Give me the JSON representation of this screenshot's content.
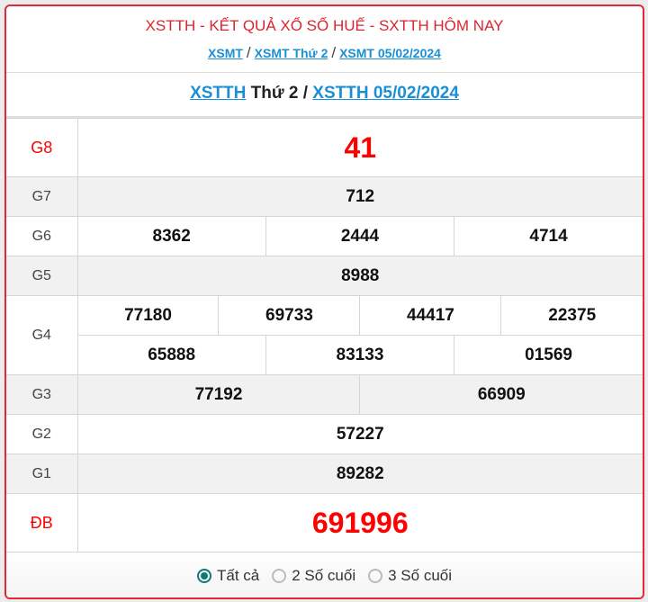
{
  "header": {
    "title": "XSTTH - KẾT QUẢ XỔ SỐ HUẾ - SXTTH HÔM NAY",
    "breadcrumbs": [
      "XSMT",
      "XSMT Thứ 2",
      "XSMT 05/02/2024"
    ],
    "separator": "/"
  },
  "subtitle": {
    "link1": "XSTTH",
    "middle": " Thứ 2 / ",
    "link2": "XSTTH 05/02/2024"
  },
  "prizes": {
    "g8": {
      "label": "G8",
      "values": [
        "41"
      ]
    },
    "g7": {
      "label": "G7",
      "values": [
        "712"
      ]
    },
    "g6": {
      "label": "G6",
      "values": [
        "8362",
        "2444",
        "4714"
      ]
    },
    "g5": {
      "label": "G5",
      "values": [
        "8988"
      ]
    },
    "g4": {
      "label": "G4",
      "values": [
        "77180",
        "69733",
        "44417",
        "22375",
        "65888",
        "83133",
        "01569"
      ]
    },
    "g3": {
      "label": "G3",
      "values": [
        "77192",
        "66909"
      ]
    },
    "g2": {
      "label": "G2",
      "values": [
        "57227"
      ]
    },
    "g1": {
      "label": "G1",
      "values": [
        "89282"
      ]
    },
    "db": {
      "label": "ĐB",
      "values": [
        "691996"
      ]
    }
  },
  "filter": {
    "options": [
      "Tất cả",
      "2 Số cuối",
      "3 Số cuối"
    ],
    "selected": "Tất cả"
  },
  "colors": {
    "accent": "#e0283a",
    "link": "#1a8fd6",
    "prize_highlight": "#ff0000",
    "radio": "#0f7a74"
  }
}
